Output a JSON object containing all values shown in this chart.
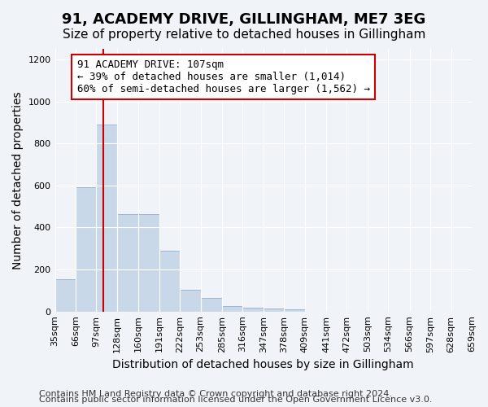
{
  "title": "91, ACADEMY DRIVE, GILLINGHAM, ME7 3EG",
  "subtitle": "Size of property relative to detached houses in Gillingham",
  "xlabel": "Distribution of detached houses by size in Gillingham",
  "ylabel": "Number of detached properties",
  "bar_color": "#c8d8e8",
  "bar_edge_color": "#a0b8d0",
  "bar_values": [
    155,
    590,
    890,
    465,
    465,
    290,
    105,
    65,
    25,
    20,
    13,
    10,
    0,
    0,
    0,
    0,
    0,
    0,
    0,
    0
  ],
  "bin_edges": [
    35,
    66,
    97,
    128,
    160,
    191,
    222,
    253,
    285,
    316,
    347,
    378,
    409,
    441,
    472,
    503,
    534,
    566,
    597,
    628,
    659
  ],
  "tick_labels": [
    "35sqm",
    "66sqm",
    "97sqm",
    "128sqm",
    "160sqm",
    "191sqm",
    "222sqm",
    "253sqm",
    "285sqm",
    "316sqm",
    "347sqm",
    "378sqm",
    "409sqm",
    "441sqm",
    "472sqm",
    "503sqm",
    "534sqm",
    "566sqm",
    "597sqm",
    "628sqm",
    "659sqm"
  ],
  "property_size": 107,
  "red_line_color": "#cc0000",
  "annotation_text": "91 ACADEMY DRIVE: 107sqm\n← 39% of detached houses are smaller (1,014)\n60% of semi-detached houses are larger (1,562) →",
  "annotation_box_color": "#ffffff",
  "annotation_border_color": "#cc0000",
  "ylim": [
    0,
    1250
  ],
  "yticks": [
    0,
    200,
    400,
    600,
    800,
    1000,
    1200
  ],
  "background_color": "#f0f4f8",
  "plot_bg_color": "#f0f4f8",
  "footer_line1": "Contains HM Land Registry data © Crown copyright and database right 2024.",
  "footer_line2": "Contains public sector information licensed under the Open Government Licence v3.0.",
  "title_fontsize": 13,
  "subtitle_fontsize": 11,
  "xlabel_fontsize": 10,
  "ylabel_fontsize": 10,
  "tick_fontsize": 8,
  "annotation_fontsize": 9,
  "footer_fontsize": 8
}
